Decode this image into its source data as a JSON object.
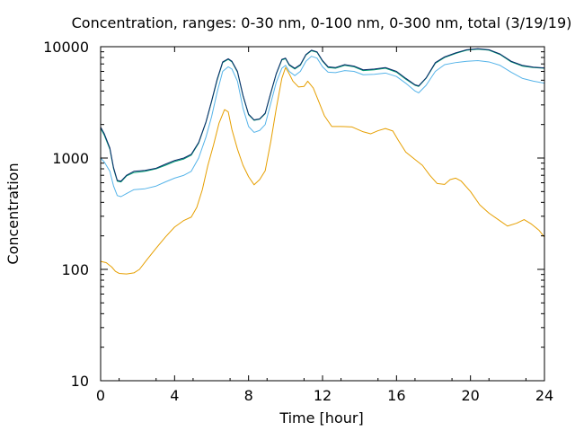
{
  "chart_data": {
    "type": "line",
    "title": "Concentration, ranges: 0-30 nm, 0-100 nm, 0-300 nm, total (3/19/19)",
    "xlabel": "Time [hour]",
    "ylabel": "Concentration",
    "xlim": [
      0,
      24
    ],
    "ylim": [
      10,
      10000
    ],
    "yscale": "log",
    "grid": false,
    "legend": "none",
    "x_ticks": [
      0,
      4,
      8,
      12,
      16,
      20,
      24
    ],
    "x_tick_labels": [
      "0",
      "4",
      "8",
      "12",
      "16",
      "20",
      "24"
    ],
    "y_ticks": [
      10,
      100,
      1000,
      10000
    ],
    "y_tick_labels": [
      "10",
      "100",
      "1000",
      "10000"
    ],
    "series": [
      {
        "color": "#e69f00",
        "points": [
          [
            0,
            118
          ],
          [
            0.3,
            115
          ],
          [
            0.6,
            105
          ],
          [
            0.8,
            96
          ],
          [
            1.0,
            92
          ],
          [
            1.4,
            91
          ],
          [
            1.8,
            93
          ],
          [
            2.1,
            100
          ],
          [
            2.5,
            122
          ],
          [
            3.0,
            155
          ],
          [
            3.5,
            195
          ],
          [
            4.0,
            240
          ],
          [
            4.5,
            275
          ],
          [
            4.9,
            295
          ],
          [
            5.2,
            360
          ],
          [
            5.5,
            520
          ],
          [
            5.8,
            860
          ],
          [
            6.1,
            1300
          ],
          [
            6.4,
            2050
          ],
          [
            6.7,
            2720
          ],
          [
            6.9,
            2600
          ],
          [
            7.1,
            1800
          ],
          [
            7.4,
            1200
          ],
          [
            7.7,
            860
          ],
          [
            8.0,
            680
          ],
          [
            8.3,
            575
          ],
          [
            8.6,
            640
          ],
          [
            8.9,
            770
          ],
          [
            9.2,
            1400
          ],
          [
            9.5,
            2800
          ],
          [
            9.8,
            5200
          ],
          [
            10.0,
            6500
          ],
          [
            10.2,
            5700
          ],
          [
            10.4,
            4900
          ],
          [
            10.7,
            4350
          ],
          [
            11.0,
            4400
          ],
          [
            11.2,
            4900
          ],
          [
            11.5,
            4250
          ],
          [
            11.8,
            3200
          ],
          [
            12.1,
            2400
          ],
          [
            12.5,
            1920
          ],
          [
            13.0,
            1920
          ],
          [
            13.6,
            1900
          ],
          [
            14.2,
            1720
          ],
          [
            14.6,
            1650
          ],
          [
            15.0,
            1760
          ],
          [
            15.4,
            1840
          ],
          [
            15.8,
            1750
          ],
          [
            16.1,
            1440
          ],
          [
            16.5,
            1130
          ],
          [
            17.0,
            970
          ],
          [
            17.4,
            860
          ],
          [
            17.8,
            700
          ],
          [
            18.2,
            590
          ],
          [
            18.6,
            580
          ],
          [
            18.9,
            640
          ],
          [
            19.2,
            660
          ],
          [
            19.5,
            620
          ],
          [
            20.0,
            500
          ],
          [
            20.5,
            380
          ],
          [
            21.0,
            320
          ],
          [
            21.5,
            280
          ],
          [
            22.0,
            245
          ],
          [
            22.5,
            260
          ],
          [
            22.9,
            280
          ],
          [
            23.3,
            255
          ],
          [
            23.7,
            225
          ],
          [
            24.0,
            195
          ]
        ]
      },
      {
        "color": "#56b4e9",
        "points": [
          [
            0,
            1000
          ],
          [
            0.2,
            920
          ],
          [
            0.5,
            760
          ],
          [
            0.7,
            560
          ],
          [
            0.9,
            460
          ],
          [
            1.1,
            450
          ],
          [
            1.4,
            480
          ],
          [
            1.8,
            520
          ],
          [
            2.4,
            530
          ],
          [
            3.0,
            560
          ],
          [
            3.5,
            610
          ],
          [
            4.0,
            660
          ],
          [
            4.5,
            700
          ],
          [
            4.9,
            760
          ],
          [
            5.3,
            1000
          ],
          [
            5.7,
            1550
          ],
          [
            6.0,
            2350
          ],
          [
            6.3,
            3900
          ],
          [
            6.6,
            6000
          ],
          [
            6.9,
            6600
          ],
          [
            7.1,
            6300
          ],
          [
            7.4,
            4900
          ],
          [
            7.7,
            2800
          ],
          [
            8.0,
            1920
          ],
          [
            8.3,
            1700
          ],
          [
            8.6,
            1770
          ],
          [
            8.9,
            2000
          ],
          [
            9.2,
            3100
          ],
          [
            9.5,
            4800
          ],
          [
            9.8,
            6400
          ],
          [
            10.0,
            6800
          ],
          [
            10.2,
            6000
          ],
          [
            10.5,
            5500
          ],
          [
            10.8,
            6000
          ],
          [
            11.1,
            7400
          ],
          [
            11.4,
            8200
          ],
          [
            11.7,
            7900
          ],
          [
            12.0,
            6600
          ],
          [
            12.3,
            5900
          ],
          [
            12.7,
            5850
          ],
          [
            13.2,
            6100
          ],
          [
            13.7,
            6000
          ],
          [
            14.2,
            5600
          ],
          [
            14.8,
            5650
          ],
          [
            15.4,
            5800
          ],
          [
            16.0,
            5400
          ],
          [
            16.5,
            4700
          ],
          [
            17.0,
            4000
          ],
          [
            17.2,
            3850
          ],
          [
            17.6,
            4500
          ],
          [
            18.1,
            6000
          ],
          [
            18.6,
            6900
          ],
          [
            19.2,
            7200
          ],
          [
            19.8,
            7400
          ],
          [
            20.4,
            7500
          ],
          [
            21.0,
            7300
          ],
          [
            21.6,
            6800
          ],
          [
            22.2,
            5900
          ],
          [
            22.8,
            5200
          ],
          [
            23.4,
            4900
          ],
          [
            24.0,
            4700
          ]
        ]
      },
      {
        "color": "#009e73",
        "points": [
          [
            0,
            1850
          ],
          [
            0.2,
            1600
          ],
          [
            0.5,
            1200
          ],
          [
            0.7,
            800
          ],
          [
            0.9,
            620
          ],
          [
            1.1,
            610
          ],
          [
            1.4,
            690
          ],
          [
            1.8,
            740
          ],
          [
            2.4,
            760
          ],
          [
            3.0,
            800
          ],
          [
            3.5,
            860
          ],
          [
            4.0,
            930
          ],
          [
            4.5,
            980
          ],
          [
            4.9,
            1060
          ],
          [
            5.3,
            1360
          ],
          [
            5.7,
            2100
          ],
          [
            6.0,
            3200
          ],
          [
            6.3,
            5000
          ],
          [
            6.6,
            7200
          ],
          [
            6.9,
            7700
          ],
          [
            7.1,
            7300
          ],
          [
            7.4,
            5900
          ],
          [
            7.7,
            3600
          ],
          [
            8.0,
            2450
          ],
          [
            8.3,
            2180
          ],
          [
            8.6,
            2230
          ],
          [
            8.9,
            2500
          ],
          [
            9.2,
            3800
          ],
          [
            9.5,
            5700
          ],
          [
            9.8,
            7600
          ],
          [
            10.0,
            7800
          ],
          [
            10.2,
            6800
          ],
          [
            10.5,
            6300
          ],
          [
            10.8,
            6800
          ],
          [
            11.1,
            8400
          ],
          [
            11.4,
            9200
          ],
          [
            11.7,
            8900
          ],
          [
            12.0,
            7400
          ],
          [
            12.3,
            6500
          ],
          [
            12.7,
            6400
          ],
          [
            13.2,
            6800
          ],
          [
            13.7,
            6600
          ],
          [
            14.2,
            6100
          ],
          [
            14.8,
            6200
          ],
          [
            15.4,
            6400
          ],
          [
            16.0,
            5900
          ],
          [
            16.5,
            5100
          ],
          [
            17.0,
            4500
          ],
          [
            17.2,
            4400
          ],
          [
            17.6,
            5200
          ],
          [
            18.1,
            7100
          ],
          [
            18.6,
            8000
          ],
          [
            19.2,
            8700
          ],
          [
            19.8,
            9300
          ],
          [
            20.4,
            9500
          ],
          [
            21.0,
            9300
          ],
          [
            21.6,
            8500
          ],
          [
            22.2,
            7300
          ],
          [
            22.8,
            6700
          ],
          [
            23.4,
            6500
          ],
          [
            24.0,
            6400
          ]
        ]
      },
      {
        "color": "#0b2a6b",
        "points": [
          [
            0,
            1900
          ],
          [
            0.2,
            1650
          ],
          [
            0.5,
            1230
          ],
          [
            0.7,
            820
          ],
          [
            0.9,
            630
          ],
          [
            1.1,
            620
          ],
          [
            1.4,
            700
          ],
          [
            1.8,
            760
          ],
          [
            2.4,
            775
          ],
          [
            3.0,
            810
          ],
          [
            3.5,
            880
          ],
          [
            4.0,
            950
          ],
          [
            4.5,
            1000
          ],
          [
            4.9,
            1080
          ],
          [
            5.3,
            1380
          ],
          [
            5.7,
            2120
          ],
          [
            6.0,
            3250
          ],
          [
            6.3,
            5100
          ],
          [
            6.6,
            7300
          ],
          [
            6.9,
            7800
          ],
          [
            7.1,
            7400
          ],
          [
            7.4,
            6000
          ],
          [
            7.7,
            3650
          ],
          [
            8.0,
            2480
          ],
          [
            8.3,
            2200
          ],
          [
            8.6,
            2250
          ],
          [
            8.9,
            2530
          ],
          [
            9.2,
            3850
          ],
          [
            9.5,
            5750
          ],
          [
            9.8,
            7700
          ],
          [
            10.0,
            7900
          ],
          [
            10.2,
            6900
          ],
          [
            10.5,
            6400
          ],
          [
            10.8,
            6900
          ],
          [
            11.1,
            8500
          ],
          [
            11.4,
            9300
          ],
          [
            11.7,
            9000
          ],
          [
            12.0,
            7500
          ],
          [
            12.3,
            6600
          ],
          [
            12.7,
            6500
          ],
          [
            13.2,
            6900
          ],
          [
            13.7,
            6700
          ],
          [
            14.2,
            6200
          ],
          [
            14.8,
            6300
          ],
          [
            15.4,
            6500
          ],
          [
            16.0,
            6000
          ],
          [
            16.5,
            5200
          ],
          [
            17.0,
            4550
          ],
          [
            17.2,
            4450
          ],
          [
            17.6,
            5250
          ],
          [
            18.1,
            7200
          ],
          [
            18.6,
            8100
          ],
          [
            19.2,
            8800
          ],
          [
            19.8,
            9400
          ],
          [
            20.4,
            9600
          ],
          [
            21.0,
            9400
          ],
          [
            21.6,
            8600
          ],
          [
            22.2,
            7400
          ],
          [
            22.8,
            6800
          ],
          [
            23.4,
            6550
          ],
          [
            24.0,
            6450
          ]
        ]
      }
    ]
  }
}
